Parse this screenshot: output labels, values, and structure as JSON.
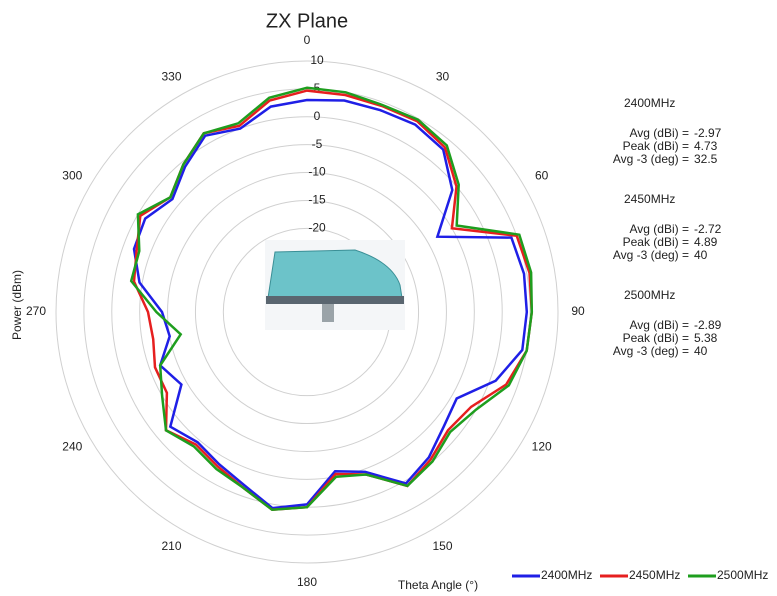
{
  "chart_data": {
    "type": "polar",
    "title": "ZX Plane",
    "r_axis_label": "Power (dBm)",
    "theta_axis_label": "Theta  Angle (°)",
    "rlim": [
      -35,
      10
    ],
    "rticks": [
      10,
      5,
      0,
      -5,
      -10,
      -15,
      -20
    ],
    "thetaticks": [
      0,
      30,
      60,
      90,
      120,
      150,
      180,
      210,
      240,
      270,
      300,
      330
    ],
    "theta": [
      0,
      10,
      20,
      30,
      40,
      50,
      60,
      70,
      80,
      90,
      100,
      110,
      120,
      130,
      140,
      150,
      160,
      170,
      180,
      190,
      200,
      210,
      220,
      230,
      240,
      250,
      260,
      270,
      280,
      290,
      300,
      310,
      320,
      330,
      340,
      350
    ],
    "series": [
      {
        "name": "2400MHz",
        "color": "#1f1fe6",
        "values": [
          3,
          3.5,
          3.5,
          3.8,
          3,
          -1,
          -8,
          4,
          4.5,
          4.4,
          4.2,
          1,
          -4,
          -3,
          -1,
          0.5,
          -4.5,
          -6,
          -0.5,
          0.7,
          -2,
          -3.5,
          -4.5,
          -3,
          -9,
          -7,
          -10,
          -9,
          -4.5,
          -2,
          -1.5,
          -3.5,
          -1,
          1.5,
          0,
          2.4
        ]
      },
      {
        "name": "2450MHz",
        "color": "#e61f1f",
        "values": [
          4.7,
          4.5,
          4.3,
          4.5,
          3.5,
          0,
          -5,
          5,
          5.5,
          5.3,
          5,
          3,
          -1,
          -2,
          -0.5,
          1,
          -4,
          -5.5,
          0,
          1,
          -1.5,
          -3,
          -4,
          -2,
          -6,
          -6,
          -7,
          -6.5,
          -3.5,
          -2.5,
          -0.5,
          -3,
          -0.5,
          2,
          0.5,
          3.5
        ]
      },
      {
        "name": "2500MHz",
        "color": "#1e9e1e",
        "values": [
          5.2,
          5,
          4.5,
          4.8,
          4,
          0.5,
          -4,
          5.5,
          5.8,
          5.3,
          5,
          3.5,
          0,
          -1.5,
          0,
          1,
          -4,
          -5,
          0,
          1,
          -1.5,
          -2.5,
          -3.5,
          -2,
          -5,
          -7,
          -12,
          -8,
          -3,
          -3,
          0,
          -3,
          -0.5,
          2,
          1,
          4
        ]
      }
    ],
    "annotations": [
      {
        "title": "2400MHz",
        "lines": [
          {
            "label": "Avg (dBi) =",
            "value": "-2.97"
          },
          {
            "label": "Peak (dBi) =",
            "value": "4.73"
          },
          {
            "label": "Avg -3 (deg) =",
            "value": "32.5"
          }
        ]
      },
      {
        "title": "2450MHz",
        "lines": [
          {
            "label": "Avg (dBi) =",
            "value": "-2.72"
          },
          {
            "label": "Peak (dBi) =",
            "value": "4.89"
          },
          {
            "label": "Avg -3 (deg) =",
            "value": "40"
          }
        ]
      },
      {
        "title": "2500MHz",
        "lines": [
          {
            "label": "Avg (dBi) =",
            "value": "-2.89"
          },
          {
            "label": "Peak (dBi) =",
            "value": "5.38"
          },
          {
            "label": "Avg -3 (deg) =",
            "value": "40"
          }
        ]
      }
    ]
  }
}
